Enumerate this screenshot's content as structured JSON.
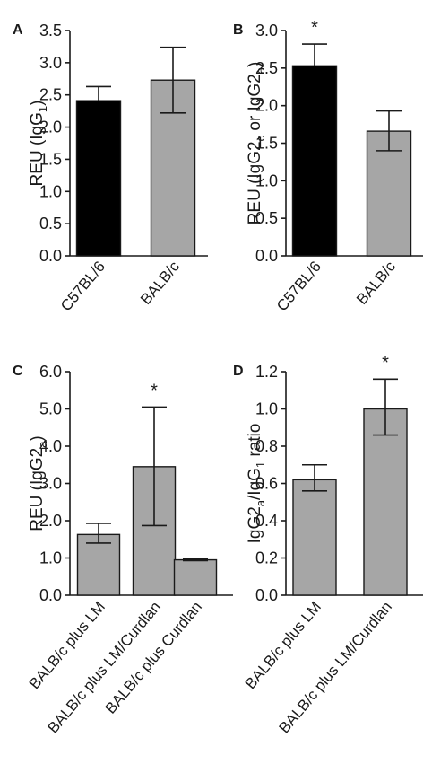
{
  "chart_data": [
    {
      "panel": "A",
      "type": "bar",
      "ylabel": {
        "base": "REU (IgG",
        "sub": "1",
        "end": ")"
      },
      "categories": [
        "C57BL/6",
        "BALB/c"
      ],
      "values": [
        2.41,
        2.73
      ],
      "error_upper": [
        2.63,
        3.24
      ],
      "error_lower": [
        2.41,
        2.22
      ],
      "ylim": [
        0.0,
        3.5
      ],
      "yticks": [
        "0.0",
        "0.5",
        "1.0",
        "1.5",
        "2.0",
        "2.5",
        "3.0",
        "3.5"
      ],
      "bar_colors": [
        "#000000",
        "#a6a6a6"
      ],
      "significance": [
        "",
        ""
      ]
    },
    {
      "panel": "B",
      "type": "bar",
      "ylabel": {
        "base": "REU (IgG2",
        "sub": "c",
        "mid": " or IgG2",
        "sub2": "a",
        "end": ")"
      },
      "categories": [
        "C57BL/6",
        "BALB/c"
      ],
      "values": [
        2.53,
        1.66
      ],
      "error_upper": [
        2.82,
        1.93
      ],
      "error_lower": [
        2.53,
        1.4
      ],
      "ylim": [
        0.0,
        3.0
      ],
      "yticks": [
        "0.0",
        "0.5",
        "1.0",
        "1.5",
        "2.0",
        "2.5",
        "3.0"
      ],
      "bar_colors": [
        "#000000",
        "#a6a6a6"
      ],
      "significance": [
        "*",
        ""
      ]
    },
    {
      "panel": "C",
      "type": "bar",
      "ylabel": {
        "base": "REU (IgG2",
        "sub": "a",
        "end": ")"
      },
      "categories": [
        "BALB/c plus LM",
        "BALB/c plus LM/Curdlan",
        "BALB/c plus Curdlan"
      ],
      "values": [
        1.63,
        3.45,
        0.95
      ],
      "error_upper": [
        1.93,
        5.05,
        0.98
      ],
      "error_lower": [
        1.4,
        1.87,
        0.93
      ],
      "ylim": [
        0.0,
        6.0
      ],
      "yticks": [
        "0.0",
        "1.0",
        "2.0",
        "3.0",
        "4.0",
        "5.0",
        "6.0"
      ],
      "bar_colors": [
        "#a6a6a6",
        "#a6a6a6",
        "#a6a6a6"
      ],
      "significance": [
        "",
        "*",
        ""
      ]
    },
    {
      "panel": "D",
      "type": "bar",
      "ylabel": {
        "base": "IgG2",
        "sub": "a",
        "mid": "/IgG",
        "sub2": "1",
        "end": " ratio"
      },
      "categories": [
        "BALB/c plus LM",
        "BALB/c plus LM/Curdlan"
      ],
      "values": [
        0.62,
        1.0
      ],
      "error_upper": [
        0.7,
        1.16
      ],
      "error_lower": [
        0.56,
        0.86
      ],
      "ylim": [
        0.0,
        1.2
      ],
      "yticks": [
        "0.0",
        "0.2",
        "0.4",
        "0.6",
        "0.8",
        "1.0",
        "1.2"
      ],
      "bar_colors": [
        "#a6a6a6",
        "#a6a6a6"
      ],
      "significance": [
        "",
        "*"
      ]
    }
  ]
}
